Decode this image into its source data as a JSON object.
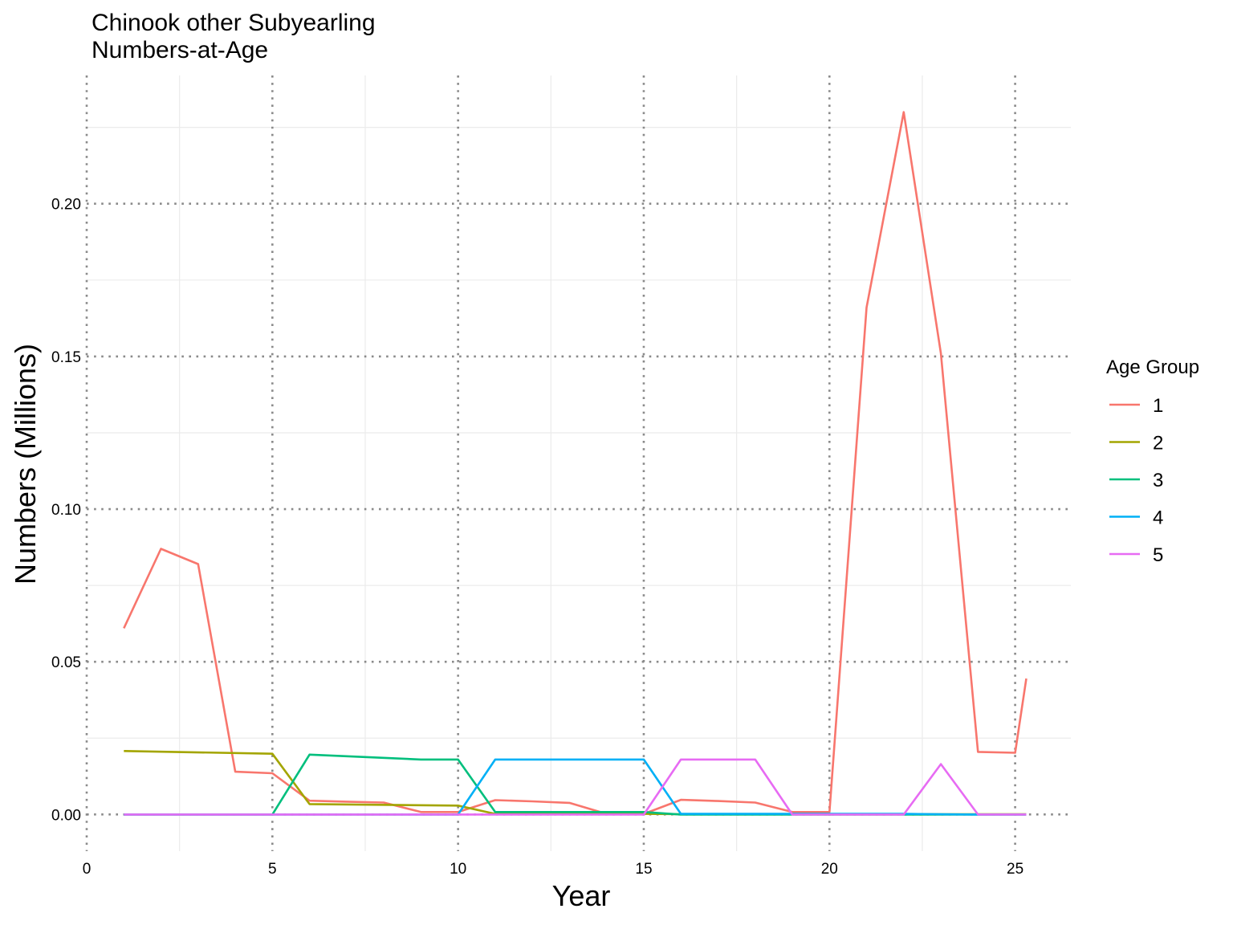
{
  "chart_data": {
    "type": "line",
    "title_lines": [
      "Chinook other Subyearling",
      "Numbers-at-Age"
    ],
    "xlabel": "Year",
    "ylabel": "Numbers (Millions)",
    "xlim": [
      0,
      26.5
    ],
    "ylim": [
      -0.012,
      0.242
    ],
    "x_ticks": [
      0,
      5,
      10,
      15,
      20,
      25
    ],
    "x_tick_labels": [
      "0",
      "5",
      "10",
      "15",
      "20",
      "25"
    ],
    "y_ticks": [
      0,
      0.05,
      0.1,
      0.15,
      0.2
    ],
    "y_tick_labels": [
      "0.00",
      "0.05",
      "0.10",
      "0.15",
      "0.20"
    ],
    "grid": "on (dotted major gridlines, light minor gridlines)",
    "legend": {
      "title": "Age Group",
      "placement": "right"
    },
    "series": [
      {
        "name": "1",
        "color": "#F8766D",
        "x": [
          1,
          2,
          3,
          4,
          5,
          6,
          7,
          8,
          9,
          10,
          11,
          12,
          13,
          14,
          15,
          16,
          17,
          18,
          19,
          20,
          21,
          22,
          23,
          24,
          25,
          25.3
        ],
        "y": [
          0.061,
          0.087,
          0.082,
          0.014,
          0.0135,
          0.0045,
          0.0042,
          0.0039,
          0.0008,
          0.0008,
          0.0047,
          0.0043,
          0.0038,
          0.0002,
          0.0002,
          0.0048,
          0.0044,
          0.0039,
          0.0008,
          0.0008,
          0.166,
          0.23,
          0.151,
          0.0205,
          0.0202,
          0.0445
        ]
      },
      {
        "name": "2",
        "color": "#A3A500",
        "x": [
          1,
          5,
          6,
          10,
          11,
          15,
          16,
          25.3
        ],
        "y": [
          0.0208,
          0.0199,
          0.0034,
          0.0029,
          0.0002,
          0.0002,
          0.0001,
          0.0001
        ]
      },
      {
        "name": "3",
        "color": "#00BF7D",
        "x": [
          1,
          5,
          6,
          9,
          10,
          11,
          15,
          16,
          20,
          25.3
        ],
        "y": [
          0.0,
          0.0,
          0.0196,
          0.018,
          0.018,
          0.0008,
          0.0008,
          0.0,
          0.0,
          0.0
        ]
      },
      {
        "name": "4",
        "color": "#00B0F6",
        "x": [
          1,
          10,
          11,
          15,
          16,
          20,
          22,
          24,
          25.3
        ],
        "y": [
          0.0,
          0.0,
          0.018,
          0.018,
          0.0002,
          0.0002,
          0.0002,
          0.0,
          0.0
        ]
      },
      {
        "name": "5",
        "color": "#E76BF3",
        "x": [
          1,
          15,
          16,
          18,
          19,
          22,
          23,
          24,
          25.3
        ],
        "y": [
          0.0,
          0.0,
          0.018,
          0.018,
          0.0,
          0.0,
          0.0165,
          0.0,
          0.0
        ]
      }
    ]
  }
}
